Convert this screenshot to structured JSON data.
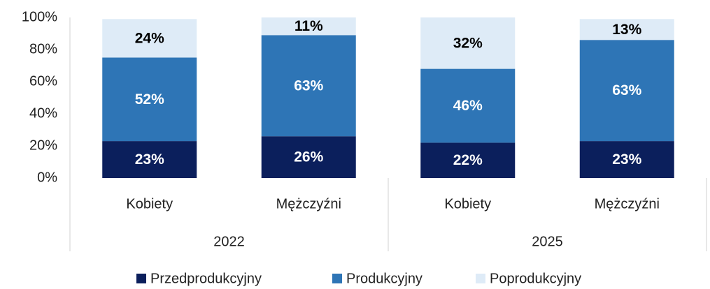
{
  "chart_data": {
    "type": "stacked_bar",
    "categories": [
      "Kobiety",
      "Mężczyźni",
      "Kobiety",
      "Mężczyźni"
    ],
    "groups": [
      "2022",
      "2025"
    ],
    "series": [
      {
        "name": "Przedprodukcyjny",
        "color": "#0b1f5c",
        "label_color": "#ffffff",
        "values": [
          23,
          26,
          22,
          23
        ],
        "value_labels": [
          "23%",
          "26%",
          "22%",
          "23%"
        ]
      },
      {
        "name": "Produkcyjny",
        "color": "#2e75b6",
        "label_color": "#ffffff",
        "values": [
          52,
          63,
          46,
          63
        ],
        "value_labels": [
          "52%",
          "63%",
          "46%",
          "63%"
        ]
      },
      {
        "name": "Poprodukcyjny",
        "color": "#deebf7",
        "label_color": "#000000",
        "values": [
          24,
          11,
          32,
          13
        ],
        "value_labels": [
          "24%",
          "11%",
          "32%",
          "13%"
        ]
      }
    ],
    "ylim": [
      0,
      100
    ],
    "yticks": [
      {
        "value": 0,
        "label": "0%"
      },
      {
        "value": 20,
        "label": "20%"
      },
      {
        "value": 40,
        "label": "40%"
      },
      {
        "value": 60,
        "label": "60%"
      },
      {
        "value": 80,
        "label": "80%"
      },
      {
        "value": 100,
        "label": "100%"
      }
    ],
    "legend": "bottom"
  }
}
